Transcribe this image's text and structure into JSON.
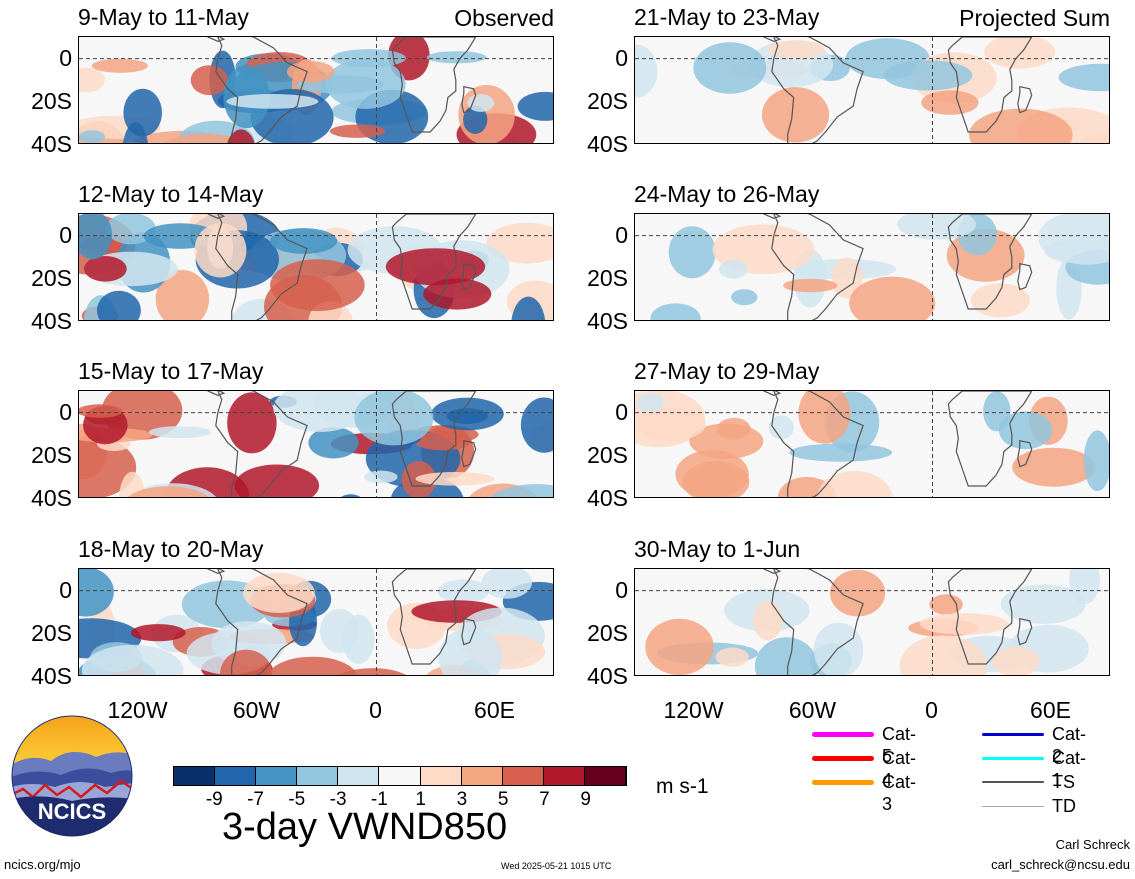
{
  "panels": {
    "left": [
      {
        "title": "9-May to 11-May",
        "tag": "Observed"
      },
      {
        "title": "12-May to 14-May",
        "tag": ""
      },
      {
        "title": "15-May to 17-May",
        "tag": ""
      },
      {
        "title": "18-May to 20-May",
        "tag": ""
      }
    ],
    "right": [
      {
        "title": "21-May to 23-May",
        "tag": "Projected Sum"
      },
      {
        "title": "24-May to 26-May",
        "tag": ""
      },
      {
        "title": "27-May to 29-May",
        "tag": ""
      },
      {
        "title": "30-May to 1-Jun",
        "tag": ""
      }
    ]
  },
  "axes": {
    "y_ticks": [
      "0",
      "20S",
      "40S"
    ],
    "x_ticks": [
      "120W",
      "60W",
      "0",
      "60E"
    ]
  },
  "colorbar": {
    "labels": [
      "-9",
      "-7",
      "-5",
      "-3",
      "-1",
      "1",
      "3",
      "5",
      "7",
      "9"
    ],
    "colors": [
      "#08306b",
      "#2166ac",
      "#4393c3",
      "#92c5de",
      "#d1e5f0",
      "#f7f7f7",
      "#fddbc7",
      "#f4a582",
      "#d6604d",
      "#b2182b",
      "#67001f"
    ],
    "units": "m s-1",
    "title": "3-day VWND850"
  },
  "legend": [
    {
      "label": "Cat-5",
      "color": "#ff00ff"
    },
    {
      "label": "Cat-4",
      "color": "#ff0000"
    },
    {
      "label": "Cat-3",
      "color": "#ff9900"
    },
    {
      "label": "Cat-2",
      "color": "#0000cc"
    },
    {
      "label": "Cat-1",
      "color": "#00ffff"
    },
    {
      "label": "TS",
      "color": "#555555"
    },
    {
      "label": "TD",
      "color": "#aaaaaa"
    }
  ],
  "logo": {
    "text": "NCICS"
  },
  "footer": {
    "url": "ncics.org/mjo",
    "timestamp": "Wed 2025-05-21 1015 UTC",
    "author": "Carl Schreck",
    "email": "carl_schreck@ncsu.edu"
  }
}
